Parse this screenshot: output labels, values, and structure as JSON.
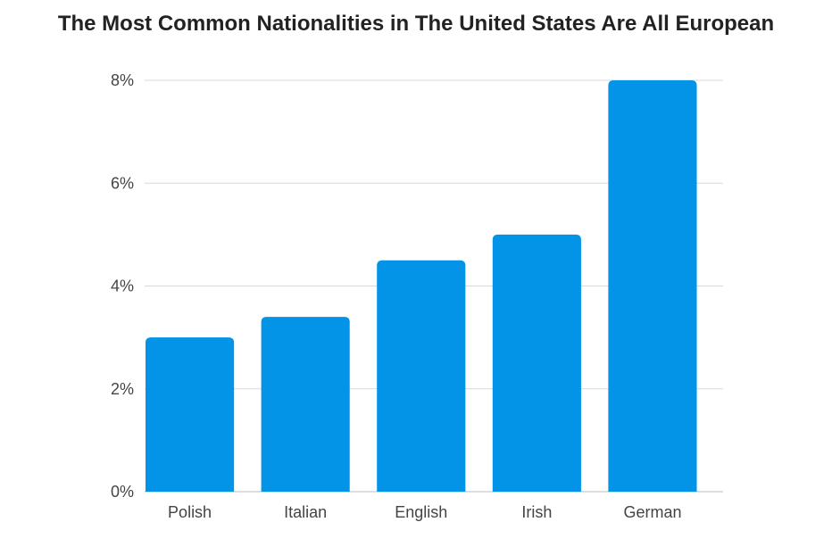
{
  "chart_data": {
    "type": "bar",
    "title": "The Most Common Nationalities in The United States Are All European",
    "xlabel": "",
    "ylabel": "",
    "categories": [
      "Polish",
      "Italian",
      "English",
      "Irish",
      "German"
    ],
    "values": [
      3.0,
      3.4,
      4.5,
      5.0,
      8.0
    ],
    "unit": "%",
    "ylim": [
      0,
      8
    ],
    "yticks": [
      0,
      2,
      4,
      6,
      8
    ],
    "ytick_labels": [
      "0%",
      "2%",
      "4%",
      "6%",
      "8%"
    ],
    "grid": true,
    "legend": "none",
    "bar_color": "#0394E8",
    "grid_color": "#d9d9d9"
  }
}
